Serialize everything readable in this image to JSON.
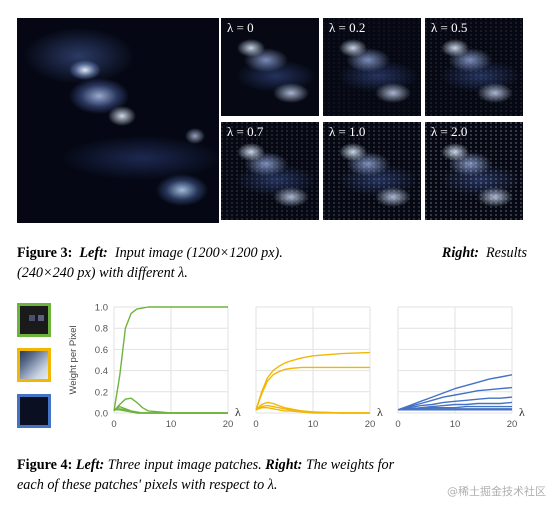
{
  "figure3": {
    "thumbnails": [
      {
        "label": "λ = 0",
        "noise": 0
      },
      {
        "label": "λ = 0.2",
        "noise": 0.15
      },
      {
        "label": "λ = 0.5",
        "noise": 0.3
      },
      {
        "label": "λ = 0.7",
        "noise": 0.45
      },
      {
        "label": "λ = 1.0",
        "noise": 0.6
      },
      {
        "label": "λ = 2.0",
        "noise": 0.85
      }
    ],
    "caption": {
      "label": "Figure 3:",
      "left_label": "Left:",
      "left_text": "Input image (1200×1200 px).",
      "right_label": "Right:",
      "right_text_1": "Results",
      "right_text_2": "(240×240 px) with different λ."
    }
  },
  "figure4": {
    "patch_colors": [
      "#6fb33f",
      "#f2b705",
      "#4472c4"
    ],
    "caption": {
      "label": "Figure 4:",
      "left_label": "Left:",
      "left_text": "Three input image patches.",
      "right_label": "Right:",
      "right_text_1": "The weights for",
      "right_text_2": "each of these patches' pixels with respect to λ."
    }
  },
  "chart_data": [
    {
      "type": "line",
      "ylabel": "Weight per Pixel",
      "xlabel": "λ",
      "xlim": [
        0,
        20
      ],
      "ylim": [
        0,
        1.0
      ],
      "xticks": [
        "0",
        "10",
        "20"
      ],
      "yticks": [
        "0.0",
        "0.2",
        "0.4",
        "0.6",
        "0.8",
        "1.0"
      ],
      "color": "#6fb33f",
      "grid": true,
      "x": [
        0,
        1,
        2,
        3,
        4,
        5,
        6,
        8,
        10,
        15,
        20
      ],
      "series": [
        {
          "values": [
            0.02,
            0.35,
            0.8,
            0.94,
            0.98,
            0.99,
            1.0,
            1.0,
            1.0,
            1.0,
            1.0
          ]
        },
        {
          "values": [
            0.02,
            0.08,
            0.13,
            0.14,
            0.1,
            0.05,
            0.02,
            0.01,
            0.0,
            0.0,
            0.0
          ]
        },
        {
          "values": [
            0.03,
            0.06,
            0.04,
            0.02,
            0.01,
            0.0,
            0.0,
            0.0,
            0.0,
            0.0,
            0.0
          ]
        },
        {
          "values": [
            0.03,
            0.04,
            0.03,
            0.01,
            0.0,
            0.0,
            0.0,
            0.0,
            0.0,
            0.0,
            0.0
          ]
        },
        {
          "values": [
            0.03,
            0.03,
            0.02,
            0.01,
            0.0,
            0.0,
            0.0,
            0.0,
            0.0,
            0.0,
            0.0
          ]
        }
      ]
    },
    {
      "type": "line",
      "xlabel": "λ",
      "xlim": [
        0,
        20
      ],
      "ylim": [
        0,
        1.0
      ],
      "xticks": [
        "0",
        "10",
        "20"
      ],
      "color": "#f2b705",
      "grid": true,
      "x": [
        0,
        1,
        2,
        3,
        4,
        5,
        6,
        8,
        10,
        15,
        20
      ],
      "series": [
        {
          "values": [
            0.03,
            0.2,
            0.33,
            0.4,
            0.44,
            0.47,
            0.49,
            0.52,
            0.54,
            0.56,
            0.57
          ]
        },
        {
          "values": [
            0.03,
            0.18,
            0.3,
            0.36,
            0.39,
            0.41,
            0.42,
            0.43,
            0.43,
            0.43,
            0.43
          ]
        },
        {
          "values": [
            0.03,
            0.08,
            0.1,
            0.09,
            0.07,
            0.05,
            0.04,
            0.02,
            0.01,
            0.0,
            0.0
          ]
        },
        {
          "values": [
            0.03,
            0.06,
            0.07,
            0.06,
            0.05,
            0.04,
            0.03,
            0.02,
            0.01,
            0.0,
            0.0
          ]
        },
        {
          "values": [
            0.03,
            0.05,
            0.05,
            0.04,
            0.03,
            0.02,
            0.02,
            0.01,
            0.0,
            0.0,
            0.0
          ]
        }
      ]
    },
    {
      "type": "line",
      "xlabel": "λ",
      "xlim": [
        0,
        20
      ],
      "ylim": [
        0,
        1.0
      ],
      "xticks": [
        "0",
        "10",
        "20"
      ],
      "color": "#4472c4",
      "grid": true,
      "x": [
        0,
        2,
        4,
        6,
        8,
        10,
        12,
        14,
        16,
        18,
        20
      ],
      "series": [
        {
          "values": [
            0.03,
            0.07,
            0.11,
            0.15,
            0.19,
            0.23,
            0.26,
            0.29,
            0.32,
            0.34,
            0.36
          ]
        },
        {
          "values": [
            0.03,
            0.06,
            0.09,
            0.12,
            0.15,
            0.17,
            0.19,
            0.21,
            0.22,
            0.23,
            0.24
          ]
        },
        {
          "values": [
            0.03,
            0.05,
            0.07,
            0.08,
            0.1,
            0.11,
            0.12,
            0.13,
            0.14,
            0.14,
            0.15
          ]
        },
        {
          "values": [
            0.03,
            0.04,
            0.05,
            0.06,
            0.07,
            0.08,
            0.08,
            0.09,
            0.09,
            0.09,
            0.1
          ]
        },
        {
          "values": [
            0.03,
            0.04,
            0.04,
            0.05,
            0.05,
            0.05,
            0.06,
            0.06,
            0.06,
            0.06,
            0.06
          ]
        },
        {
          "values": [
            0.03,
            0.03,
            0.04,
            0.04,
            0.04,
            0.04,
            0.04,
            0.04,
            0.04,
            0.04,
            0.04
          ]
        },
        {
          "values": [
            0.03,
            0.03,
            0.03,
            0.03,
            0.03,
            0.03,
            0.03,
            0.03,
            0.03,
            0.03,
            0.03
          ]
        }
      ]
    }
  ],
  "watermark": "@稀土掘金技术社区"
}
